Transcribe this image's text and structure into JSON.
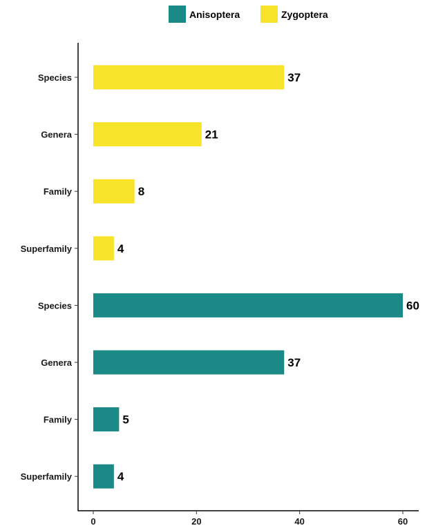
{
  "chart_data": {
    "type": "bar",
    "orientation": "horizontal",
    "legend": {
      "placement": "top",
      "entries": [
        {
          "name": "Anisoptera",
          "color": "#1b8a86"
        },
        {
          "name": "Zygoptera",
          "color": "#f7e32a"
        }
      ]
    },
    "bars": [
      {
        "group": "Zygoptera",
        "label": "Species",
        "value": 37
      },
      {
        "group": "Zygoptera",
        "label": "Genera",
        "value": 21
      },
      {
        "group": "Zygoptera",
        "label": "Family",
        "value": 8
      },
      {
        "group": "Zygoptera",
        "label": "Superfamily",
        "value": 4
      },
      {
        "group": "Anisoptera",
        "label": "Species",
        "value": 60
      },
      {
        "group": "Anisoptera",
        "label": "Genera",
        "value": 37
      },
      {
        "group": "Anisoptera",
        "label": "Family",
        "value": 5
      },
      {
        "group": "Anisoptera",
        "label": "Superfamily",
        "value": 4
      }
    ],
    "x_ticks": [
      0,
      20,
      40,
      60
    ],
    "xlim": [
      0,
      63
    ],
    "title": "",
    "xlabel": "",
    "ylabel": "",
    "grid": false
  }
}
